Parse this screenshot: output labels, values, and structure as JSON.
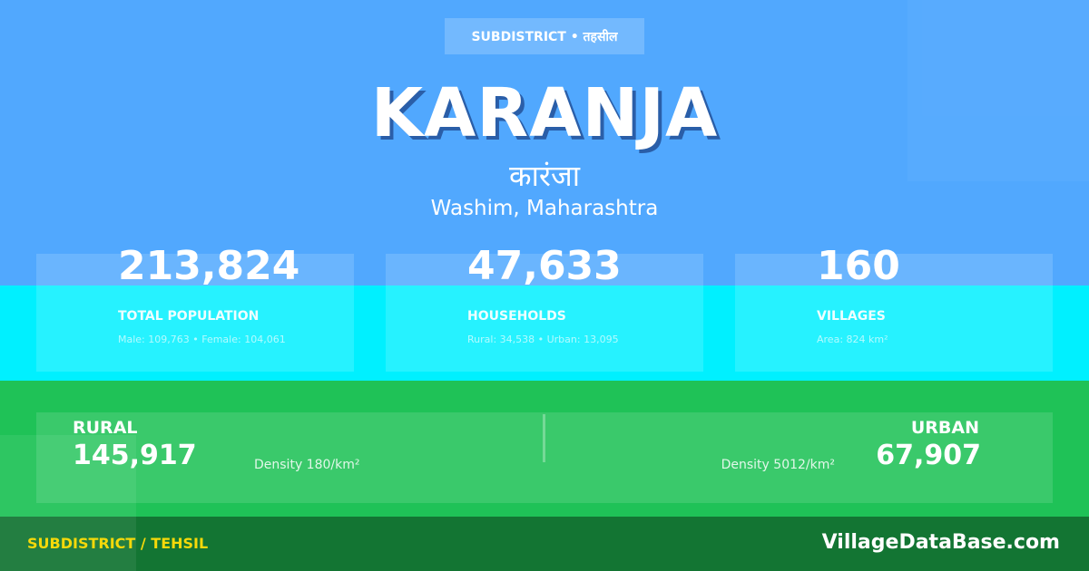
{
  "badge": "SUBDISTRICT • तहसील",
  "title": "KARANJA",
  "title_local": "कारंजा",
  "location": "Washim, Maharashtra",
  "stats": [
    {
      "value": "213,824",
      "label": "TOTAL POPULATION",
      "sub": "Male: 109,763 • Female: 104,061"
    },
    {
      "value": "47,633",
      "label": "HOUSEHOLDS",
      "sub": "Rural: 34,538 • Urban: 13,095"
    },
    {
      "value": "160",
      "label": "VILLAGES",
      "sub": "Area: 824 km²"
    }
  ],
  "rural": {
    "label": "RURAL",
    "value": "145,917",
    "density": "Density 180/km²"
  },
  "urban": {
    "label": "URBAN",
    "value": "67,907",
    "density": "Density 5012/km²"
  },
  "footer": {
    "category": "SUBDISTRICT / TEHSIL",
    "brand": "VillageDataBase.com"
  },
  "colors": {
    "blue": "#51a8fe",
    "cyan": "#00f0ff",
    "green": "#1fc257",
    "dark_green": "#137533",
    "footer_text": "#f5d90a"
  }
}
